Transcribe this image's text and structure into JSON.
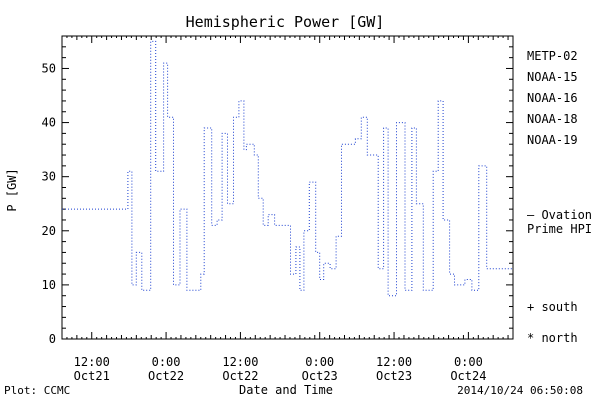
{
  "chart_data": {
    "type": "line",
    "title": "Hemispheric Power [GW]",
    "xlabel": "Date and Time",
    "ylabel": "P [GW]",
    "ylim": [
      0,
      56
    ],
    "xlim_hours": [
      0,
      91
    ],
    "y_ticks": [
      0,
      10,
      20,
      30,
      40,
      50
    ],
    "x_ticks": [
      {
        "hours": 6,
        "time": "12:00",
        "date": "Oct21"
      },
      {
        "hours": 21,
        "time": "0:00",
        "date": "Oct22"
      },
      {
        "hours": 36,
        "time": "12:00",
        "date": "Oct22"
      },
      {
        "hours": 52,
        "time": "0:00",
        "date": "Oct23"
      },
      {
        "hours": 67,
        "time": "12:00",
        "date": "Oct23"
      },
      {
        "hours": 82,
        "time": "0:00",
        "date": "Oct24"
      }
    ],
    "grid": false,
    "legend_position": "right",
    "series": [
      {
        "name": "METP-02",
        "color": "#000000",
        "values": []
      },
      {
        "name": "NOAA-15",
        "color": "#1a3fd0",
        "line_style": "dotted",
        "step": true,
        "x": [
          0,
          12.5,
          13.3,
          14.1,
          15,
          16.1,
          17.9,
          18.9,
          20.5,
          21.3,
          22.5,
          23.8,
          25.2,
          28,
          28.7,
          30.2,
          31.3,
          32.3,
          33.4,
          34.6,
          35.7,
          36.7,
          37.2,
          38.8,
          39.6,
          40.6,
          41.6,
          42.9,
          44.3,
          46.1,
          47.2,
          48,
          48.8,
          49.9,
          51.2,
          52,
          52.8,
          54.1,
          55.3,
          56.4,
          57.9,
          59.2,
          60.4,
          61.6,
          62.8,
          63.8,
          64.9,
          65.8,
          67.5,
          69.2,
          70.6,
          71.5,
          72.9,
          74.9,
          75.9,
          76.9,
          78.2,
          79.2,
          81.3,
          82.7,
          84.1,
          85.7,
          86.6,
          87.8,
          88.9,
          90,
          90.9
        ],
        "values": [
          24,
          24,
          31,
          10,
          16,
          9,
          55,
          31,
          51,
          41,
          10,
          24,
          9,
          12,
          39,
          21,
          22,
          38,
          25,
          41,
          44,
          35,
          36,
          34,
          26,
          21,
          23,
          21,
          21,
          12,
          17,
          9,
          20,
          29,
          16,
          11,
          14,
          13,
          19,
          36,
          36,
          37,
          41,
          34,
          34,
          13,
          39,
          8,
          40,
          9,
          39,
          25,
          9,
          31,
          44,
          22,
          12,
          10,
          11,
          9,
          32,
          13,
          13,
          13,
          13,
          13,
          13
        ]
      },
      {
        "name": "NOAA-16",
        "color": "#1ab4e8",
        "values": []
      },
      {
        "name": "NOAA-18",
        "color": "#22d07a",
        "values": []
      },
      {
        "name": "NOAA-19",
        "color": "#f0a020",
        "values": []
      }
    ],
    "annotations": {
      "right_value_label": [
        "— Ovation",
        "Prime HPI"
      ],
      "right_value_color": "#1a3fd0",
      "right_value_y": 23,
      "marker_south": "+ south",
      "marker_north": "* north"
    },
    "footer_left": "Plot: CCMC",
    "footer_right": "2014/10/24 06:50:08"
  }
}
